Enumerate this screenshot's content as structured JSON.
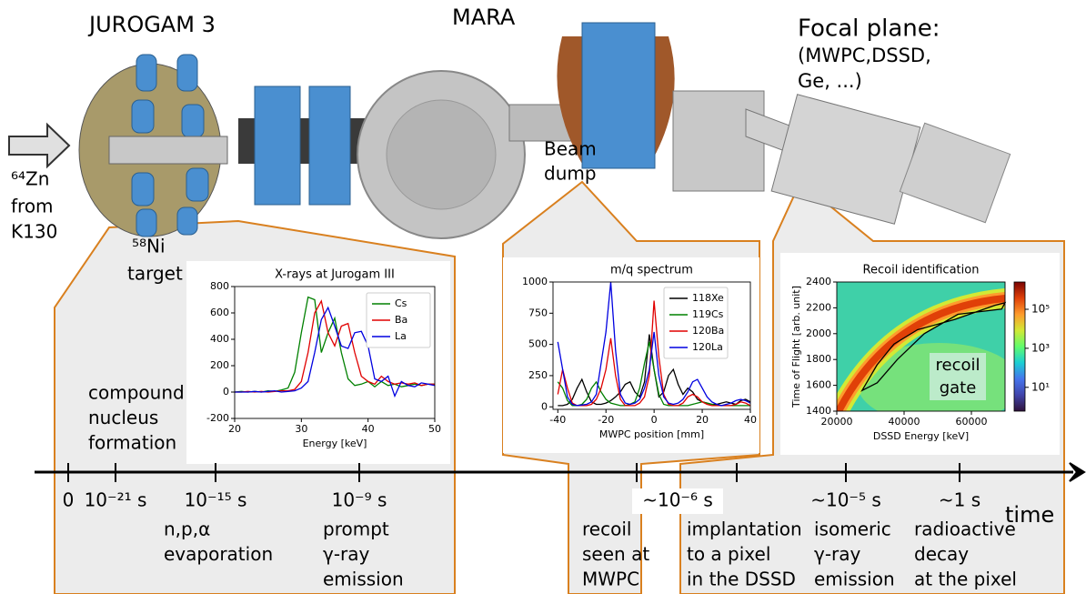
{
  "diagram": {
    "jurogam": "JUROGAM 3",
    "mara": "MARA",
    "focal_plane": [
      "Focal plane:",
      "(MWPC,DSSD,",
      "Ge, ...)"
    ],
    "beam": [
      "⁶⁴Zn",
      "from",
      "K130"
    ],
    "target": [
      "⁵⁸Ni",
      "target"
    ],
    "beam_dump": [
      "Beam",
      "dump"
    ],
    "time_label": "time",
    "timeline_ticks": [
      "0",
      "10⁻²¹ s",
      "10⁻¹⁵ s",
      "10⁻⁹ s",
      "~10⁻⁶ s",
      "~10⁻⁵ s",
      "~1 s"
    ],
    "events": [
      {
        "lines": [
          "compound",
          "nucleus",
          "formation"
        ]
      },
      {
        "lines": [
          "n,p,α",
          "evaporation"
        ]
      },
      {
        "lines": [
          "prompt",
          "γ-ray",
          "emission"
        ]
      },
      {
        "lines": [
          "recoil",
          "seen at",
          "MWPC"
        ]
      },
      {
        "lines": [
          "implantation",
          "to a pixel",
          "in the DSSD"
        ]
      },
      {
        "lines": [
          "isomeric",
          "γ-ray",
          "emission"
        ]
      },
      {
        "lines": [
          "radioactive",
          "decay",
          "at the pixel"
        ]
      }
    ]
  },
  "chart_data": [
    {
      "type": "line",
      "title": "X-rays at Jurogam III",
      "xlabel": "Energy [keV]",
      "x": [
        20,
        21,
        22,
        23,
        24,
        25,
        26,
        27,
        28,
        29,
        30,
        31,
        32,
        33,
        34,
        35,
        36,
        37,
        38,
        39,
        40,
        41,
        42,
        43,
        44,
        45,
        46,
        47,
        48,
        49,
        50
      ],
      "series": [
        {
          "name": "Cs",
          "color": "#008000",
          "values": [
            0,
            5,
            0,
            5,
            0,
            10,
            5,
            15,
            30,
            150,
            450,
            720,
            700,
            300,
            450,
            560,
            300,
            100,
            50,
            60,
            80,
            40,
            80,
            50,
            60,
            40,
            50,
            60,
            50,
            60,
            60
          ]
        },
        {
          "name": "Ba",
          "color": "#e00000",
          "values": [
            0,
            0,
            5,
            0,
            5,
            0,
            5,
            10,
            10,
            20,
            80,
            300,
            600,
            690,
            450,
            350,
            500,
            520,
            300,
            120,
            80,
            60,
            120,
            80,
            60,
            70,
            60,
            70,
            50,
            60,
            60
          ]
        },
        {
          "name": "La",
          "color": "#0000e0",
          "values": [
            0,
            0,
            0,
            5,
            0,
            5,
            10,
            0,
            5,
            10,
            30,
            80,
            300,
            550,
            640,
            500,
            350,
            330,
            450,
            460,
            350,
            100,
            80,
            120,
            -30,
            80,
            50,
            40,
            70,
            60,
            50
          ]
        }
      ],
      "xlim": [
        20,
        50
      ],
      "xticks": [
        20,
        30,
        40,
        50
      ],
      "ylim": [
        -200,
        800
      ],
      "yticks": [
        -200,
        0,
        200,
        400,
        600,
        800
      ],
      "legend": "upper right"
    },
    {
      "type": "line",
      "title": "m/q spectrum",
      "xlabel": "MWPC position [mm]",
      "x": [
        -40,
        -38,
        -36,
        -34,
        -32,
        -30,
        -28,
        -26,
        -24,
        -22,
        -20,
        -18,
        -16,
        -14,
        -12,
        -10,
        -8,
        -6,
        -4,
        -2,
        0,
        2,
        4,
        6,
        8,
        10,
        12,
        14,
        16,
        18,
        20,
        22,
        24,
        26,
        28,
        30,
        32,
        34,
        36,
        38,
        40
      ],
      "series": [
        {
          "name": "118Xe",
          "color": "#000000",
          "values": [
            10,
            10,
            20,
            60,
            150,
            220,
            120,
            40,
            20,
            20,
            30,
            50,
            80,
            120,
            180,
            200,
            120,
            80,
            200,
            580,
            300,
            80,
            120,
            250,
            300,
            180,
            100,
            150,
            120,
            60,
            40,
            30,
            20,
            20,
            30,
            40,
            30,
            20,
            50,
            60,
            40
          ]
        },
        {
          "name": "119Cs",
          "color": "#008000",
          "values": [
            200,
            150,
            50,
            10,
            10,
            20,
            60,
            150,
            200,
            120,
            60,
            30,
            20,
            10,
            10,
            20,
            40,
            150,
            350,
            520,
            300,
            100,
            20,
            10,
            10,
            10,
            10,
            10,
            20,
            30,
            40,
            30,
            20,
            10,
            10,
            10,
            10,
            10,
            10,
            10,
            10
          ]
        },
        {
          "name": "120Ba",
          "color": "#e00000",
          "values": [
            100,
            300,
            150,
            30,
            10,
            10,
            10,
            20,
            60,
            150,
            300,
            550,
            250,
            60,
            10,
            10,
            10,
            30,
            80,
            250,
            850,
            400,
            100,
            20,
            10,
            10,
            30,
            80,
            100,
            80,
            40,
            20,
            10,
            10,
            10,
            10,
            10,
            20,
            40,
            30,
            10
          ]
        },
        {
          "name": "120La",
          "color": "#0000e0",
          "values": [
            520,
            300,
            80,
            20,
            10,
            15,
            20,
            40,
            100,
            350,
            600,
            1000,
            450,
            100,
            30,
            20,
            30,
            60,
            150,
            300,
            600,
            250,
            80,
            30,
            20,
            30,
            60,
            120,
            200,
            220,
            150,
            80,
            40,
            20,
            10,
            20,
            30,
            50,
            60,
            50,
            30
          ]
        }
      ],
      "xlim": [
        -42,
        40
      ],
      "xticks": [
        -40,
        -20,
        0,
        20,
        40
      ],
      "ylim": [
        -20,
        1000
      ],
      "yticks": [
        0,
        250,
        500,
        750,
        1000
      ],
      "legend": "upper right"
    },
    {
      "type": "heatmap",
      "title": "Recoil identification",
      "xlabel": "DSSD Energy [keV]",
      "ylabel": "Time of Flight [arb. unit]",
      "xlim": [
        20000,
        70000
      ],
      "xticks": [
        20000,
        40000,
        60000
      ],
      "ylim": [
        1400,
        2400
      ],
      "yticks": [
        1400,
        1600,
        1800,
        2000,
        2200,
        2400
      ],
      "gate": {
        "label": [
          "recoil",
          "gate"
        ],
        "x": [
          27500,
          32000,
          37000,
          44000,
          55000,
          67000,
          70000,
          69000,
          56000,
          46000,
          38000,
          32000
        ],
        "y": [
          1560,
          1760,
          1920,
          2030,
          2110,
          2220,
          2240,
          2190,
          2150,
          2000,
          1800,
          1620
        ]
      },
      "colorbar": {
        "log": true,
        "lim": [
          0.6,
          2500000
        ],
        "ticks": [
          {
            "value": 10,
            "label": "10¹"
          },
          {
            "value": 1000,
            "label": "10³"
          },
          {
            "value": 100000,
            "label": "10⁵"
          }
        ],
        "colors": [
          "#30123b",
          "#4145ab",
          "#4675ed",
          "#1bcfd4",
          "#61fc6c",
          "#d2e935",
          "#fe9b2d",
          "#e04008",
          "#7a0403"
        ]
      }
    }
  ]
}
